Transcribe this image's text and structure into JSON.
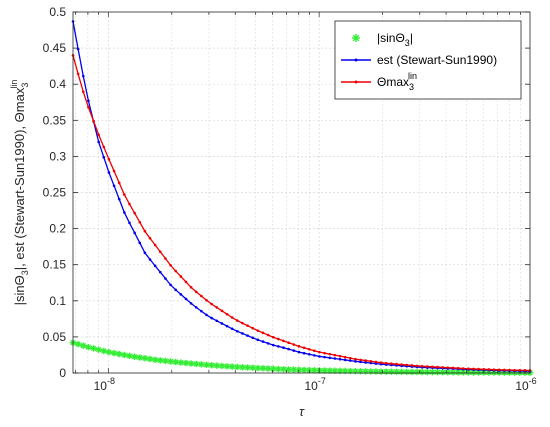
{
  "chart_data": {
    "type": "scatter",
    "title": "",
    "xlabel": "τ",
    "ylabel": "|sinΘ₃|, est (Stewart-Sun1990), Θmax₃ˡⁱⁿ",
    "ylabel_parts": {
      "p1": "|sinΘ",
      "s1": "3",
      "p2": "|, est (Stewart-Sun1990), Θmax",
      "s2": "3",
      "sup2": "lin"
    },
    "xscale": "log",
    "xlim": [
      6.8e-09,
      1e-06
    ],
    "ylim": [
      0,
      0.5
    ],
    "grid": true,
    "legend_position": "top-right",
    "x_ticks": [
      {
        "value": 1e-08,
        "base": "10",
        "exp": "-8"
      },
      {
        "value": 1e-07,
        "base": "10",
        "exp": "-7"
      },
      {
        "value": 1e-06,
        "base": "10",
        "exp": "-6"
      }
    ],
    "y_ticks": [
      "0",
      "0.05",
      "0.1",
      "0.15",
      "0.2",
      "0.25",
      "0.3",
      "0.35",
      "0.4",
      "0.45",
      "0.5"
    ],
    "series": [
      {
        "legend": {
          "pre": "|sinΘ",
          "sub": "3",
          "post": "|",
          "sup": ""
        },
        "marker": "asterisk",
        "color": "#33ee33",
        "x": [
          6.8e-09,
          8e-09,
          1e-08,
          1.3e-08,
          1.7e-08,
          2.2e-08,
          3e-08,
          4e-08,
          5e-08,
          7e-08,
          1e-07,
          1.5e-07,
          2e-07,
          3e-07,
          5e-07,
          7e-07,
          1e-06
        ],
        "y": [
          0.042,
          0.036,
          0.029,
          0.023,
          0.018,
          0.0145,
          0.011,
          0.0085,
          0.007,
          0.005,
          0.0036,
          0.0025,
          0.0019,
          0.0013,
          0.0008,
          0.0006,
          0.0004
        ]
      },
      {
        "legend": {
          "pre": "est (Stewart-Sun1990)",
          "sub": "",
          "post": "",
          "sup": ""
        },
        "marker": "dot-line",
        "color": "#0000ee",
        "x": [
          6.8e-09,
          7.5e-09,
          8e-09,
          9e-09,
          1e-08,
          1.2e-08,
          1.5e-08,
          2e-08,
          2.5e-08,
          3e-08,
          4e-08,
          5e-08,
          6e-08,
          7e-08,
          8e-08,
          1e-07,
          1.5e-07,
          2e-07,
          3e-07,
          5e-07,
          7e-07,
          1e-06
        ],
        "y": [
          0.487,
          0.42,
          0.38,
          0.32,
          0.28,
          0.22,
          0.165,
          0.12,
          0.095,
          0.078,
          0.059,
          0.047,
          0.039,
          0.034,
          0.029,
          0.023,
          0.016,
          0.012,
          0.008,
          0.005,
          0.0035,
          0.0025
        ]
      },
      {
        "legend": {
          "pre": "Θmax",
          "sub": "3",
          "post": "",
          "sup": "lin"
        },
        "marker": "dot-line",
        "color": "#ee0000",
        "x": [
          6.8e-09,
          7.5e-09,
          8e-09,
          9e-09,
          1e-08,
          1.2e-08,
          1.5e-08,
          2e-08,
          2.5e-08,
          3e-08,
          4e-08,
          5e-08,
          6e-08,
          7e-08,
          8e-08,
          1e-07,
          1.5e-07,
          2e-07,
          3e-07,
          5e-07,
          7e-07,
          1e-06
        ],
        "y": [
          0.44,
          0.395,
          0.37,
          0.33,
          0.298,
          0.245,
          0.195,
          0.147,
          0.117,
          0.098,
          0.074,
          0.06,
          0.05,
          0.043,
          0.037,
          0.029,
          0.019,
          0.014,
          0.0095,
          0.006,
          0.0045,
          0.0035
        ]
      }
    ]
  }
}
